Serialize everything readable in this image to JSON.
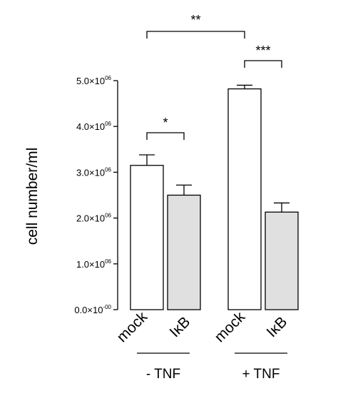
{
  "chart_data": {
    "type": "bar",
    "ylabel": "cell number/ml",
    "ylim": [
      0,
      5000000
    ],
    "yticks": [
      {
        "value": 0,
        "mant": "0.0×10",
        "exp": "-00"
      },
      {
        "value": 1000000,
        "mant": "1.0×10",
        "exp": "06"
      },
      {
        "value": 2000000,
        "mant": "2.0×10",
        "exp": "06"
      },
      {
        "value": 3000000,
        "mant": "3.0×10",
        "exp": "06"
      },
      {
        "value": 4000000,
        "mant": "4.0×10",
        "exp": "06"
      },
      {
        "value": 5000000,
        "mant": "5.0×10",
        "exp": "06"
      }
    ],
    "categories": [
      "mock",
      "IκB",
      "mock",
      "IκB"
    ],
    "groups": [
      "- TNF",
      "+ TNF"
    ],
    "values": [
      3150000,
      2500000,
      4820000,
      2130000
    ],
    "errors": [
      230000,
      220000,
      80000,
      200000
    ],
    "colors": [
      "#ffffff",
      "#e0e0e0",
      "#ffffff",
      "#e0e0e0"
    ],
    "significance": [
      {
        "from": 0,
        "to": 1,
        "label": "*"
      },
      {
        "from": 2,
        "to": 3,
        "label": "***"
      },
      {
        "from": 0,
        "to": 2,
        "label": "**"
      }
    ]
  }
}
